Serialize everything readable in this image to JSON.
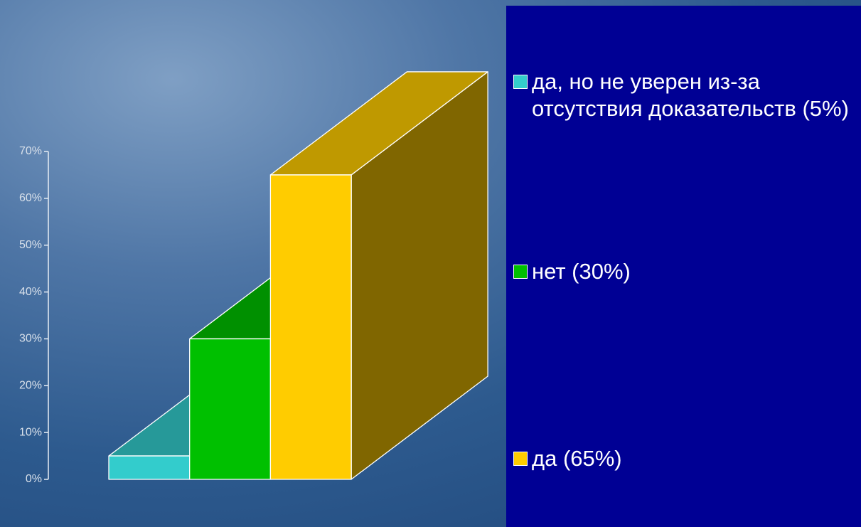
{
  "chart_data": {
    "type": "bar",
    "categories": [
      null
    ],
    "series": [
      {
        "name": "да, но не уверен из-за отсутствия доказательств (5%)",
        "color": "#33cccc",
        "values": [
          5
        ]
      },
      {
        "name": "нет (30%)",
        "color": "#00c000",
        "values": [
          30
        ]
      },
      {
        "name": "да (65%)",
        "color": "#ffcc00",
        "values": [
          65
        ]
      }
    ],
    "ylim": [
      0,
      70
    ],
    "yticks": [
      {
        "value": 0,
        "label": "0%"
      },
      {
        "value": 10,
        "label": "10%"
      },
      {
        "value": 20,
        "label": "20%"
      },
      {
        "value": 30,
        "label": "30%"
      },
      {
        "value": 40,
        "label": "40%"
      },
      {
        "value": 50,
        "label": "50%"
      },
      {
        "value": 60,
        "label": "60%"
      },
      {
        "value": 70,
        "label": "70%"
      }
    ],
    "grid": false
  }
}
